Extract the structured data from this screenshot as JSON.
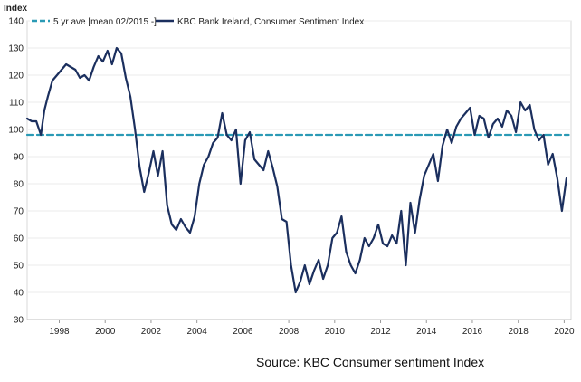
{
  "chart_data": {
    "type": "line",
    "ylabel": "Index",
    "ylim": [
      30,
      140
    ],
    "yticks": [
      30,
      40,
      50,
      60,
      70,
      80,
      90,
      100,
      110,
      120,
      130,
      140
    ],
    "xlim": [
      1996.6,
      2020.3
    ],
    "xticks": [
      1998,
      2000,
      2002,
      2004,
      2006,
      2008,
      2010,
      2012,
      2014,
      2016,
      2018,
      2020
    ],
    "series": [
      {
        "name": "5 yr ave [mean 02/2015 -]",
        "style": "dashed",
        "color": "#2a9ab5",
        "x": [
          1996.6,
          2020.2
        ],
        "y": [
          98,
          98
        ]
      },
      {
        "name": "KBC Bank Ireland, Consumer Sentiment Index",
        "style": "solid",
        "color": "#1b2f5e",
        "x": [
          1996.6,
          1996.8,
          1997.0,
          1997.2,
          1997.35,
          1997.5,
          1997.7,
          1997.9,
          1998.1,
          1998.3,
          1998.5,
          1998.7,
          1998.9,
          1999.1,
          1999.3,
          1999.5,
          1999.7,
          1999.9,
          2000.1,
          2000.3,
          2000.5,
          2000.7,
          2000.9,
          2001.1,
          2001.3,
          2001.5,
          2001.7,
          2001.9,
          2002.1,
          2002.3,
          2002.5,
          2002.7,
          2002.9,
          2003.1,
          2003.3,
          2003.5,
          2003.7,
          2003.9,
          2004.1,
          2004.3,
          2004.5,
          2004.7,
          2004.9,
          2005.1,
          2005.3,
          2005.5,
          2005.7,
          2005.9,
          2006.1,
          2006.3,
          2006.5,
          2006.7,
          2006.9,
          2007.1,
          2007.3,
          2007.5,
          2007.7,
          2007.9,
          2008.1,
          2008.3,
          2008.5,
          2008.7,
          2008.9,
          2009.1,
          2009.3,
          2009.5,
          2009.7,
          2009.9,
          2010.1,
          2010.3,
          2010.5,
          2010.7,
          2010.9,
          2011.1,
          2011.3,
          2011.5,
          2011.7,
          2011.9,
          2012.1,
          2012.3,
          2012.5,
          2012.7,
          2012.9,
          2013.1,
          2013.3,
          2013.5,
          2013.7,
          2013.9,
          2014.1,
          2014.3,
          2014.5,
          2014.7,
          2014.9,
          2015.1,
          2015.3,
          2015.5,
          2015.7,
          2015.9,
          2016.1,
          2016.3,
          2016.5,
          2016.7,
          2016.9,
          2017.1,
          2017.3,
          2017.5,
          2017.7,
          2017.9,
          2018.1,
          2018.3,
          2018.5,
          2018.7,
          2018.9,
          2019.1,
          2019.3,
          2019.5,
          2019.7,
          2019.9,
          2020.1
        ],
        "y": [
          104,
          103,
          103,
          98,
          107,
          112,
          118,
          120,
          122,
          124,
          123,
          122,
          119,
          120,
          118,
          123,
          127,
          125,
          129,
          124,
          130,
          128,
          119,
          112,
          100,
          86,
          77,
          84,
          92,
          83,
          92,
          72,
          65,
          63,
          67,
          64,
          62,
          68,
          80,
          87,
          90,
          95,
          97,
          106,
          98,
          96,
          100,
          80,
          96,
          99,
          89,
          87,
          85,
          92,
          86,
          79,
          67,
          66,
          50,
          40,
          44,
          50,
          43,
          48,
          52,
          45,
          50,
          60,
          62,
          68,
          55,
          50,
          47,
          52,
          60,
          57,
          60,
          65,
          58,
          57,
          61,
          58,
          70,
          50,
          73,
          62,
          74,
          83,
          87,
          91,
          81,
          94,
          100,
          95,
          101,
          104,
          106,
          108,
          98,
          105,
          104,
          97,
          102,
          104,
          101,
          107,
          105,
          99,
          110,
          107,
          109,
          100,
          96,
          98,
          87,
          91,
          82,
          70,
          82
        ]
      }
    ]
  },
  "source_text": "Source: KBC Consumer sentiment Index"
}
